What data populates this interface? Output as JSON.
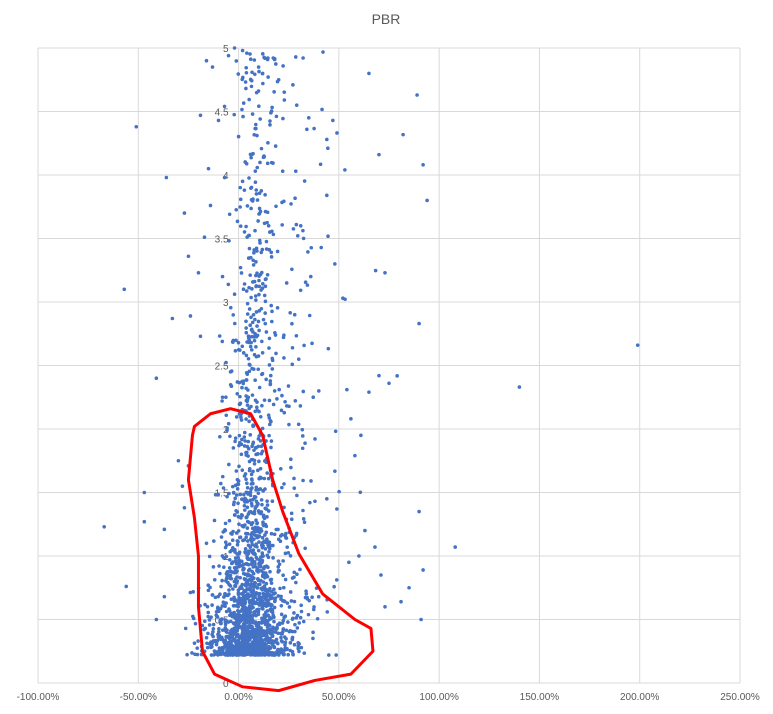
{
  "chart_data": {
    "type": "scatter",
    "title": "PBR",
    "xlabel": "",
    "ylabel": "",
    "xlim": [
      -1.0,
      2.5
    ],
    "ylim": [
      0,
      5
    ],
    "x_ticks": [
      -1.0,
      -0.5,
      0.0,
      0.5,
      1.0,
      1.5,
      2.0,
      2.5
    ],
    "x_tick_labels": [
      "-100.00%",
      "-50.00%",
      "0.00%",
      "50.00%",
      "100.00%",
      "150.00%",
      "200.00%",
      "250.00%"
    ],
    "y_ticks": [
      0,
      0.5,
      1,
      1.5,
      2,
      2.5,
      3,
      3.5,
      4,
      4.5,
      5
    ],
    "y_tick_labels": [
      "0",
      "0.5",
      "1",
      "1.5",
      "2",
      "2.5",
      "3",
      "3.5",
      "4",
      "4.5",
      "5"
    ],
    "y_axis_at_x": 0,
    "grid": true,
    "legend": "none",
    "marker_color": "#4472c4",
    "annotation": {
      "shape": "freehand-loop",
      "color": "#ff0000",
      "outline": [
        [
          -0.23,
          1.95
        ],
        [
          -0.22,
          2.02
        ],
        [
          -0.14,
          2.12
        ],
        [
          -0.04,
          2.16
        ],
        [
          0.06,
          2.12
        ],
        [
          0.12,
          1.95
        ],
        [
          0.17,
          1.6
        ],
        [
          0.22,
          1.35
        ],
        [
          0.3,
          1.02
        ],
        [
          0.42,
          0.7
        ],
        [
          0.58,
          0.5
        ],
        [
          0.66,
          0.43
        ],
        [
          0.67,
          0.25
        ],
        [
          0.56,
          0.07
        ],
        [
          0.38,
          0.02
        ],
        [
          0.2,
          -0.06
        ],
        [
          0.02,
          -0.03
        ],
        [
          -0.12,
          0.07
        ],
        [
          -0.18,
          0.25
        ],
        [
          -0.2,
          0.6
        ],
        [
          -0.2,
          1.0
        ],
        [
          -0.22,
          1.3
        ],
        [
          -0.25,
          1.6
        ],
        [
          -0.23,
          1.95
        ]
      ]
    },
    "points": [
      [
        -0.51,
        4.38
      ],
      [
        -0.57,
        3.1
      ],
      [
        -0.67,
        1.23
      ],
      [
        -0.56,
        0.76
      ],
      [
        -0.41,
        0.5
      ],
      [
        -0.37,
        0.68
      ],
      [
        -0.47,
        1.5
      ],
      [
        -0.47,
        1.27
      ],
      [
        -0.37,
        1.21
      ],
      [
        -0.41,
        2.4
      ],
      [
        -0.36,
        3.98
      ],
      [
        -0.27,
        3.7
      ],
      [
        -0.25,
        3.36
      ],
      [
        -0.2,
        3.23
      ],
      [
        -0.17,
        3.51
      ],
      [
        -0.14,
        3.76
      ],
      [
        -0.33,
        2.87
      ],
      [
        -0.24,
        2.89
      ],
      [
        -0.19,
        2.73
      ],
      [
        -0.19,
        4.47
      ],
      [
        -0.16,
        4.9
      ],
      [
        -0.13,
        4.85
      ],
      [
        -0.1,
        4.43
      ],
      [
        -0.07,
        4.54
      ],
      [
        -0.05,
        4.94
      ],
      [
        -0.02,
        5.0
      ],
      [
        0.02,
        4.98
      ],
      [
        0.1,
        4.85
      ],
      [
        0.12,
        4.8
      ],
      [
        0.2,
        4.75
      ],
      [
        -0.15,
        4.05
      ],
      [
        -0.07,
        3.98
      ],
      [
        0.02,
        3.95
      ],
      [
        0.22,
        4.03
      ],
      [
        0.29,
        4.55
      ],
      [
        0.35,
        4.45
      ],
      [
        0.44,
        4.28
      ],
      [
        0.47,
        4.43
      ],
      [
        0.53,
        4.04
      ],
      [
        0.65,
        4.8
      ],
      [
        0.7,
        4.16
      ],
      [
        0.89,
        4.63
      ],
      [
        0.92,
        4.08
      ],
      [
        0.94,
        3.8
      ],
      [
        0.73,
        3.23
      ],
      [
        0.9,
        2.83
      ],
      [
        0.7,
        2.42
      ],
      [
        0.75,
        2.36
      ],
      [
        0.65,
        2.29
      ],
      [
        0.54,
        2.31
      ],
      [
        0.56,
        2.08
      ],
      [
        0.61,
        1.95
      ],
      [
        0.58,
        1.79
      ],
      [
        0.44,
        3.84
      ],
      [
        0.48,
        3.3
      ],
      [
        0.52,
        3.03
      ],
      [
        1.99,
        2.66
      ],
      [
        1.4,
        2.33
      ],
      [
        1.08,
        1.07
      ],
      [
        0.9,
        1.35
      ],
      [
        0.92,
        0.89
      ],
      [
        0.91,
        0.5
      ],
      [
        0.81,
        0.64
      ],
      [
        0.85,
        0.75
      ],
      [
        0.73,
        0.6
      ],
      [
        0.71,
        0.85
      ],
      [
        0.68,
        1.07
      ],
      [
        0.63,
        1.2
      ],
      [
        0.6,
        1.0
      ],
      [
        0.55,
        0.95
      ],
      [
        0.49,
        1.37
      ],
      [
        0.44,
        1.45
      ],
      [
        -0.25,
        1.71
      ],
      [
        -0.3,
        1.75
      ],
      [
        -0.27,
        1.38
      ],
      [
        -0.16,
        1.1
      ],
      [
        -0.12,
        1.28
      ],
      [
        -0.28,
        1.55
      ],
      [
        -0.08,
        2.25
      ],
      [
        0.3,
        2.55
      ],
      [
        0.12,
        2.6
      ],
      [
        0.28,
        2.9
      ],
      [
        0.31,
        3.6
      ],
      [
        0.15,
        3.6
      ],
      [
        0.36,
        3.2
      ],
      [
        0.24,
        3.15
      ],
      [
        -0.08,
        3.2
      ],
      [
        -0.04,
        2.45
      ],
      [
        0.18,
        2.3
      ],
      [
        0.4,
        2.3
      ]
    ]
  }
}
